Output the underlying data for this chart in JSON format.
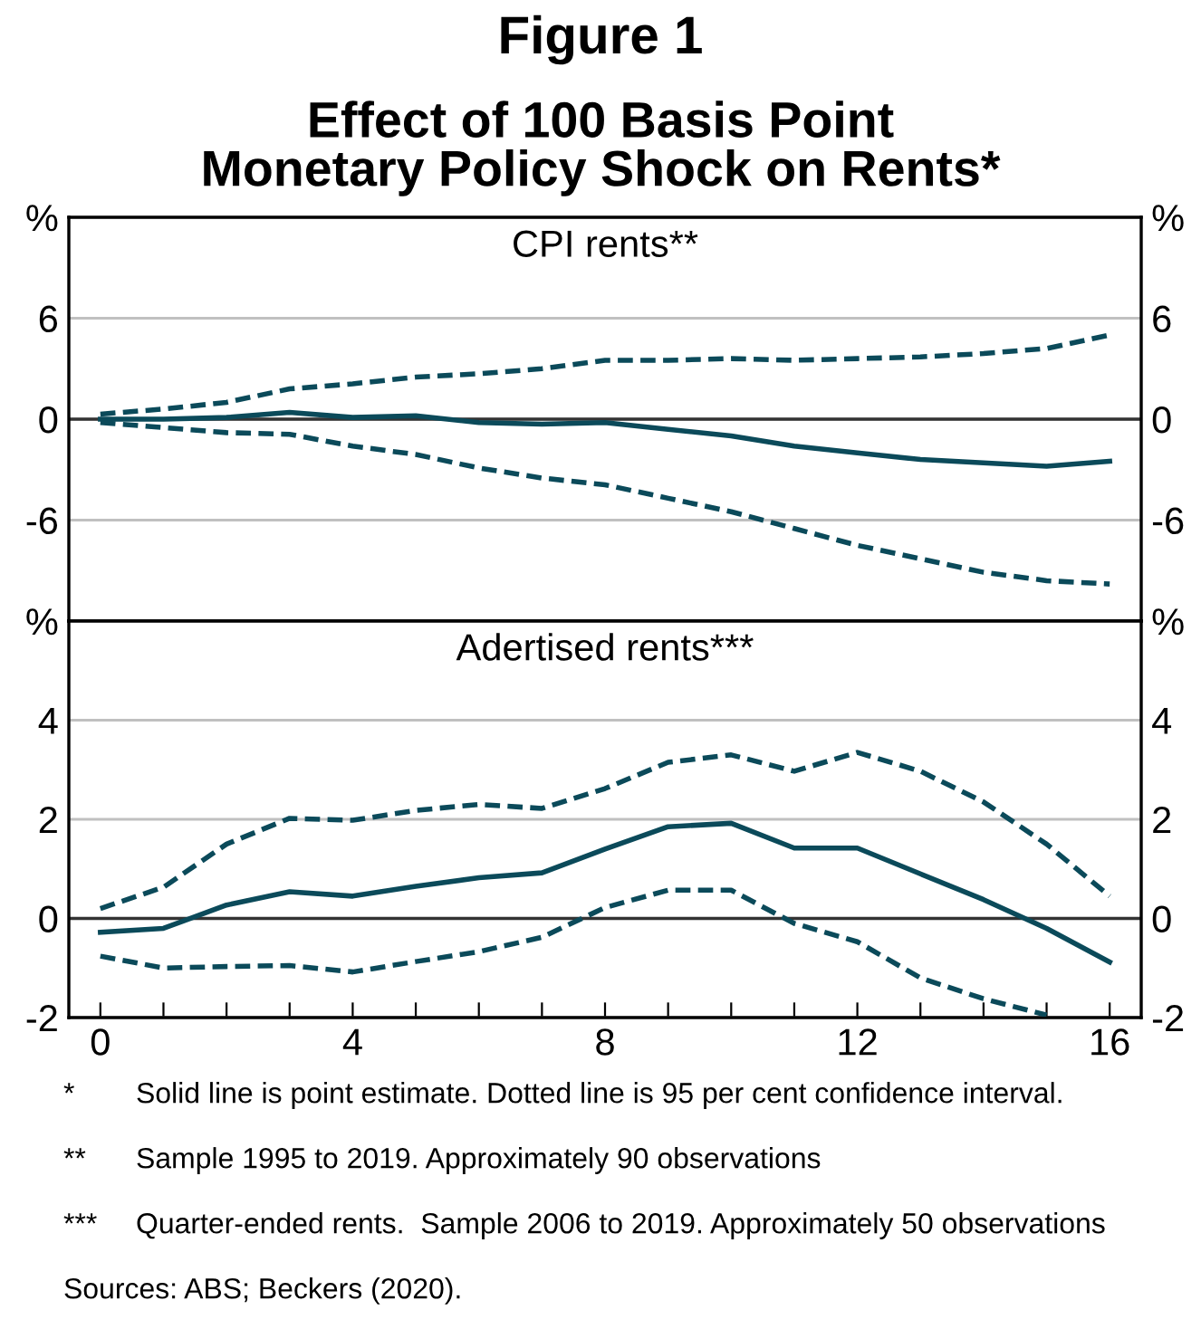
{
  "chart_data": [
    {
      "type": "other",
      "title": "Figure 1",
      "subtitle": "Effect of 100 Basis Point\nMonetary Policy Shock on Rents*"
    },
    {
      "type": "line",
      "title": "CPI rents**",
      "x": [
        0,
        1,
        2,
        3,
        4,
        5,
        6,
        7,
        8,
        9,
        10,
        11,
        12,
        13,
        14,
        15,
        16
      ],
      "xlim": [
        -0.5,
        16.5
      ],
      "tick_labels": "y",
      "ylim": [
        -12,
        12
      ],
      "yticks": [
        -6,
        0,
        6,
        {
          "value": 12,
          "label": "%"
        }
      ],
      "y2lim": [
        -12,
        12
      ],
      "y2ticks": [
        -6,
        0,
        6,
        {
          "value": 12,
          "label": "%"
        }
      ],
      "grid": "y",
      "ref_lines": [
        {
          "axis": "y",
          "value": 0,
          "color": "#333333"
        }
      ],
      "series": [
        {
          "color": "#0b4a5a",
          "line_style": "solid",
          "values": [
            0,
            0,
            0.1,
            0.4,
            0.1,
            0.2,
            -0.2,
            -0.3,
            -0.2,
            -0.6,
            -1.0,
            -1.6,
            -2.0,
            -2.4,
            -2.6,
            -2.8,
            -2.5
          ]
        },
        {
          "color": "#0b4a5a",
          "line_style": "dashed",
          "values": [
            0.3,
            0.6,
            1.0,
            1.8,
            2.1,
            2.5,
            2.7,
            3.0,
            3.5,
            3.5,
            3.6,
            3.5,
            3.6,
            3.7,
            3.9,
            4.2,
            5.0
          ]
        },
        {
          "color": "#0b4a5a",
          "line_style": "dashed",
          "values": [
            -0.2,
            -0.5,
            -0.8,
            -0.9,
            -1.6,
            -2.1,
            -2.9,
            -3.5,
            -3.9,
            -4.7,
            -5.5,
            -6.5,
            -7.5,
            -8.3,
            -9.1,
            -9.6,
            -9.8
          ]
        }
      ]
    },
    {
      "type": "line",
      "title": "Adertised rents***",
      "x": [
        0,
        1,
        2,
        3,
        4,
        5,
        6,
        7,
        8,
        9,
        10,
        11,
        12,
        13,
        14,
        15,
        16
      ],
      "xlim": [
        -0.5,
        16.5
      ],
      "xticks": [
        0,
        {
          "value": 1,
          "label": null
        },
        {
          "value": 2,
          "label": null
        },
        {
          "value": 3,
          "label": null
        },
        4,
        {
          "value": 5,
          "label": null
        },
        {
          "value": 6,
          "label": null
        },
        {
          "value": 7,
          "label": null
        },
        8,
        {
          "value": 9,
          "label": null
        },
        {
          "value": 10,
          "label": null
        },
        {
          "value": 11,
          "label": null
        },
        12,
        {
          "value": 13,
          "label": null
        },
        {
          "value": 14,
          "label": null
        },
        {
          "value": 15,
          "label": null
        },
        16
      ],
      "ylim": [
        -2,
        6
      ],
      "yticks": [
        -2,
        0,
        2,
        4,
        {
          "value": 6,
          "label": "%"
        }
      ],
      "y2lim": [
        -2,
        6
      ],
      "y2ticks": [
        -2,
        0,
        2,
        4,
        {
          "value": 6,
          "label": "%"
        }
      ],
      "grid": "y",
      "ref_lines": [
        {
          "axis": "y",
          "value": 0,
          "color": "#333333"
        }
      ],
      "series": [
        {
          "color": "#0b4a5a",
          "line_style": "solid",
          "values": [
            -0.28,
            -0.2,
            0.27,
            0.54,
            0.45,
            0.65,
            0.82,
            0.92,
            1.4,
            1.85,
            1.92,
            1.42,
            1.42,
            0.9,
            0.38,
            -0.2,
            -0.88
          ]
        },
        {
          "color": "#0b4a5a",
          "line_style": "dashed",
          "values": [
            0.2,
            0.63,
            1.5,
            2.02,
            1.98,
            2.18,
            2.3,
            2.22,
            2.62,
            3.15,
            3.3,
            2.97,
            3.35,
            2.97,
            2.35,
            1.5,
            0.45
          ]
        },
        {
          "color": "#0b4a5a",
          "line_style": "dashed",
          "values": [
            -0.76,
            -1.0,
            -0.97,
            -0.95,
            -1.08,
            -0.87,
            -0.67,
            -0.38,
            0.22,
            0.57,
            0.57,
            -0.1,
            -0.47,
            -1.2,
            -1.62,
            -1.95,
            null
          ]
        }
      ],
      "annotations": [
        "* Solid line is point estimate. Dotted line is 95 per cent confidence interval.",
        "** Sample 1995 to 2019. Approximately 90 observations",
        "*** Quarter-ended rents.  Sample 2006 to 2019. Approximately 50 observations",
        "Sources: ABS; Beckers (2020)."
      ]
    }
  ]
}
